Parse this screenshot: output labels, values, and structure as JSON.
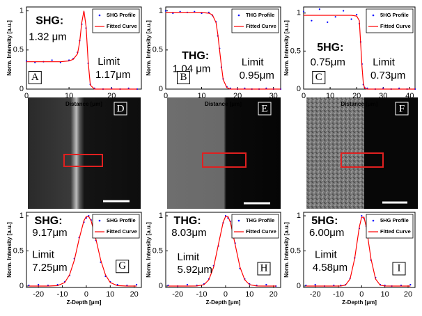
{
  "chart_data": [
    {
      "type": "scatter",
      "panel_label": "A",
      "xlabel": "Distance [μm]",
      "ylabel": "Norm. Intensity [a.u.]",
      "annotations": [
        "SHG:",
        "1.32 μm",
        "Limit",
        "1.17μm"
      ],
      "xlim": [
        0,
        27
      ],
      "xticks": [
        0,
        10,
        20
      ],
      "ylim": [
        0,
        1.05
      ],
      "yticks": [
        0,
        0.5,
        1
      ],
      "series": [
        {
          "name": "SHG Profile",
          "color": "#0000ff",
          "mode": "markers",
          "x": [
            0,
            2,
            4,
            6,
            8,
            10,
            11,
            12,
            12.5,
            13,
            13.5,
            14,
            14.5,
            15,
            16,
            18,
            20,
            22,
            24,
            26
          ],
          "values": [
            0.36,
            0.34,
            0.35,
            0.37,
            0.34,
            0.37,
            0.39,
            0.47,
            0.62,
            0.83,
            0.98,
            0.78,
            0.33,
            0.06,
            0.01,
            0,
            0.01,
            0,
            0.01,
            0
          ]
        },
        {
          "name": "Fitted Curve",
          "color": "#ff0000",
          "mode": "line",
          "x": [
            0,
            2,
            4,
            6,
            8,
            10,
            11,
            12,
            12.5,
            13,
            13.5,
            14,
            14.5,
            15,
            16,
            18,
            20,
            22,
            24,
            26
          ],
          "values": [
            0.35,
            0.35,
            0.35,
            0.35,
            0.35,
            0.36,
            0.38,
            0.45,
            0.6,
            0.85,
            1,
            0.8,
            0.35,
            0.05,
            0,
            0,
            0,
            0,
            0,
            0
          ]
        }
      ]
    },
    {
      "type": "scatter",
      "panel_label": "B",
      "xlabel": "Distance [μm]",
      "ylabel": "Norm. Intensity [a.u.]",
      "annotations": [
        "THG:",
        "1.04 μm",
        "Limit",
        "0.95μm"
      ],
      "xlim": [
        0,
        32
      ],
      "xticks": [
        0,
        10,
        20,
        30
      ],
      "ylim": [
        0,
        1.05
      ],
      "yticks": [
        0,
        0.5,
        1
      ],
      "series": [
        {
          "name": "THG Profile",
          "color": "#0000ff",
          "mode": "markers",
          "x": [
            0,
            2,
            4,
            6,
            8,
            10,
            12,
            13,
            14,
            14.5,
            15,
            15.5,
            16,
            17,
            18,
            20,
            22,
            24,
            26,
            28,
            30,
            32
          ],
          "values": [
            1,
            0.97,
            0.99,
            0.98,
            0.99,
            0.97,
            0.98,
            0.94,
            0.86,
            0.68,
            0.52,
            0.28,
            0.13,
            0.03,
            0.01,
            0,
            0.01,
            0,
            0,
            0.01,
            0,
            0
          ]
        },
        {
          "name": "Fitted Curve",
          "color": "#ff0000",
          "mode": "line",
          "x": [
            0,
            2,
            4,
            6,
            8,
            10,
            12,
            13,
            14,
            14.5,
            15,
            15.5,
            16,
            17,
            18,
            20,
            22,
            24,
            26,
            28,
            30,
            32
          ],
          "values": [
            0.98,
            0.98,
            0.98,
            0.98,
            0.98,
            0.98,
            0.97,
            0.95,
            0.85,
            0.7,
            0.5,
            0.3,
            0.12,
            0.02,
            0,
            0,
            0,
            0,
            0,
            0,
            0,
            0
          ]
        }
      ]
    },
    {
      "type": "scatter",
      "panel_label": "C",
      "xlabel": "Distance [μm]",
      "ylabel": "Norm. Intensity [a.u.]",
      "annotations": [
        "5HG:",
        "0.75μm",
        "Limit",
        "0.73μm"
      ],
      "xlim": [
        0,
        42
      ],
      "xticks": [
        0,
        10,
        20,
        30,
        40
      ],
      "ylim": [
        0,
        1.08
      ],
      "yticks": [
        0,
        0.5,
        1
      ],
      "series": [
        {
          "name": "5HG Profile",
          "color": "#0000ff",
          "mode": "markers",
          "x": [
            0,
            3,
            6,
            9,
            12,
            15,
            18,
            20,
            21,
            21.5,
            22,
            22.5,
            23,
            24,
            27,
            30,
            33,
            36,
            39,
            42
          ],
          "values": [
            1.02,
            0.9,
            1.05,
            0.88,
            0.95,
            1.03,
            0.92,
            0.98,
            0.86,
            0.62,
            0.33,
            0.06,
            0.02,
            0.01,
            0,
            0.01,
            0,
            0.01,
            0,
            0
          ]
        },
        {
          "name": "Fitted Curve",
          "color": "#ff0000",
          "mode": "line",
          "x": [
            0,
            3,
            6,
            9,
            12,
            15,
            18,
            20,
            21,
            21.5,
            22,
            22.5,
            23,
            24,
            27,
            30,
            33,
            36,
            39,
            42
          ],
          "values": [
            0.97,
            0.97,
            0.97,
            0.97,
            0.97,
            0.97,
            0.97,
            0.96,
            0.9,
            0.6,
            0.3,
            0.08,
            0.01,
            0,
            0,
            0,
            0,
            0,
            0,
            0
          ]
        }
      ]
    },
    {
      "type": "scatter",
      "panel_label": "G",
      "xlabel": "Z-Depth [μm]",
      "ylabel": "Norm. Intensity [a.u.]",
      "annotations": [
        "SHG:",
        "9.17μm",
        "Limit",
        "7.25μm"
      ],
      "xlim": [
        -25,
        23
      ],
      "xticks": [
        -20,
        -10,
        0,
        10,
        20
      ],
      "ylim": [
        -0.02,
        1.05
      ],
      "yticks": [
        0,
        0.5,
        1
      ],
      "series": [
        {
          "name": "SHG Profile",
          "color": "#0000ff",
          "mode": "markers",
          "x": [
            -24,
            -20,
            -16,
            -12,
            -9,
            -7,
            -5,
            -3,
            -1,
            0,
            1,
            2,
            4,
            6,
            8,
            10,
            13,
            17,
            21
          ],
          "values": [
            0.01,
            0.02,
            0.01,
            0.02,
            0.06,
            0.15,
            0.39,
            0.69,
            0.91,
            0.97,
            1,
            0.94,
            0.65,
            0.34,
            0.14,
            0.06,
            0.02,
            0.01,
            0.02
          ]
        },
        {
          "name": "Fitted Curve",
          "color": "#ff0000",
          "mode": "line",
          "x": [
            -24,
            -20,
            -16,
            -12,
            -9,
            -7,
            -5,
            -3,
            -1,
            0,
            1,
            2,
            4,
            6,
            8,
            10,
            13,
            17,
            21
          ],
          "values": [
            0,
            0,
            0,
            0.006,
            0.05,
            0.16,
            0.37,
            0.67,
            0.93,
            0.99,
            0.99,
            0.93,
            0.67,
            0.37,
            0.16,
            0.05,
            0.006,
            0,
            0
          ]
        }
      ]
    },
    {
      "type": "scatter",
      "panel_label": "H",
      "xlabel": "Z-Depth [μm]",
      "ylabel": "Norm. Intensity [a.u.]",
      "annotations": [
        "THG:",
        "8.03μm",
        "Limit",
        "5.92μm"
      ],
      "xlim": [
        -25,
        23
      ],
      "xticks": [
        -20,
        -10,
        0,
        10,
        20
      ],
      "ylim": [
        -0.02,
        1.05
      ],
      "yticks": [
        0,
        0.5,
        1
      ],
      "series": [
        {
          "name": "THG Profile",
          "color": "#0000ff",
          "mode": "markers",
          "x": [
            -24,
            -20,
            -16,
            -12,
            -9,
            -7,
            -5,
            -3,
            -1,
            0,
            1,
            2,
            4,
            6,
            8,
            10,
            13,
            17,
            21
          ],
          "values": [
            0.01,
            0,
            0.02,
            0.01,
            0.03,
            0.1,
            0.29,
            0.57,
            0.9,
            1,
            0.97,
            0.92,
            0.61,
            0.25,
            0.1,
            0.03,
            0.01,
            0.02,
            0
          ]
        },
        {
          "name": "Fitted Curve",
          "color": "#ff0000",
          "mode": "line",
          "x": [
            -24,
            -20,
            -16,
            -12,
            -9,
            -7,
            -5,
            -3,
            -1,
            0,
            1,
            2,
            4,
            6,
            8,
            10,
            13,
            17,
            21
          ],
          "values": [
            0,
            0,
            0,
            0.001,
            0.02,
            0.09,
            0.27,
            0.59,
            0.91,
            0.99,
            0.99,
            0.91,
            0.59,
            0.27,
            0.09,
            0.02,
            0.001,
            0,
            0
          ]
        }
      ]
    },
    {
      "type": "scatter",
      "panel_label": "I",
      "xlabel": "Z-Depth [μm]",
      "ylabel": "Norm. Intensity [a.u.]",
      "annotations": [
        "5HG:",
        "6.00μm",
        "Limit",
        "4.58μm"
      ],
      "xlim": [
        -25,
        23
      ],
      "xticks": [
        -20,
        -10,
        0,
        10,
        20
      ],
      "ylim": [
        -0.02,
        1.05
      ],
      "yticks": [
        0,
        0.5,
        1
      ],
      "series": [
        {
          "name": "5HG Profile",
          "color": "#0000ff",
          "mode": "markers",
          "x": [
            -24,
            -20,
            -16,
            -12,
            -9,
            -7,
            -5,
            -3,
            -1,
            0,
            1,
            2,
            4,
            6,
            8,
            10,
            13,
            17,
            21
          ],
          "values": [
            0.01,
            0.02,
            0,
            0.01,
            0.01,
            0.02,
            0.11,
            0.4,
            0.82,
            1,
            0.96,
            0.85,
            0.37,
            0.12,
            0.02,
            0.01,
            0,
            0.01,
            0.02
          ]
        },
        {
          "name": "Fitted Curve",
          "color": "#ff0000",
          "mode": "line",
          "x": [
            -24,
            -20,
            -16,
            -12,
            -9,
            -7,
            -5,
            -3,
            -1,
            0,
            1,
            2,
            4,
            6,
            8,
            10,
            13,
            17,
            21
          ],
          "values": [
            0,
            0,
            0,
            0,
            0.001,
            0.013,
            0.1,
            0.39,
            0.84,
            0.98,
            0.98,
            0.84,
            0.39,
            0.1,
            0.013,
            0.001,
            0,
            0,
            0
          ]
        }
      ]
    }
  ],
  "image_panels": [
    {
      "label": "D"
    },
    {
      "label": "E"
    },
    {
      "label": "F"
    }
  ]
}
